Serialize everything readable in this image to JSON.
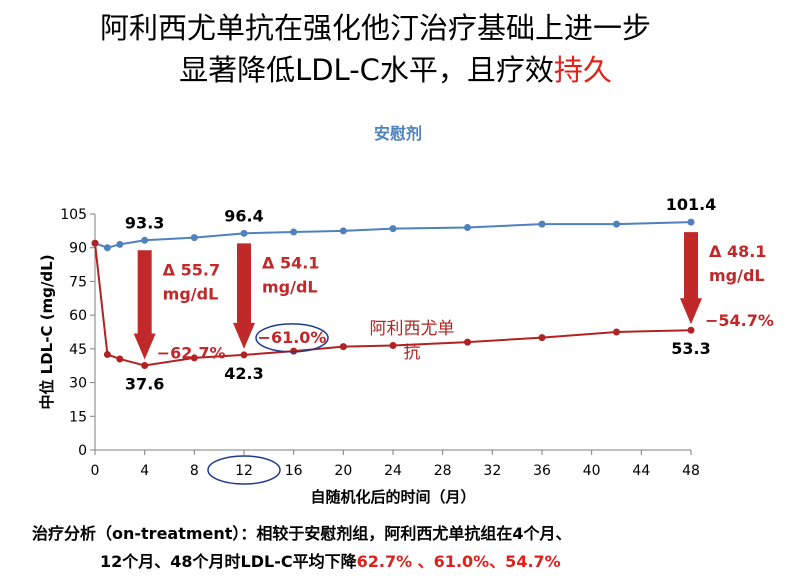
{
  "slide": {
    "title_line1": "阿利西尤单抗在强化他汀治疗基础上进一步",
    "title_line2_main": "显著降低LDL-C水平，且疗效",
    "title_line2_emph": "持久",
    "footer_line1": "治疗分析（on-treatment）：相较于安慰剂组，阿利西尤单抗组在4个月、",
    "footer_line2_main": "12个月、48个月时LDL-C平均下降",
    "footer_line2_emph": "62.7% 、61.0%、54.7%"
  },
  "colors": {
    "placebo": "#4f81bd",
    "alirocumab": "#b22222",
    "arrow": "#c0282a",
    "emphasis": "#e0201b",
    "highlight_ellipse": "#1f3b8c"
  },
  "chart_data": {
    "type": "line",
    "title": "",
    "xlabel": "自随机化后的时间（月）",
    "ylabel": "中位 LDL-C (mg/dL)",
    "xlim": [
      0,
      48
    ],
    "ylim": [
      0,
      105
    ],
    "xticks": [
      0,
      4,
      8,
      12,
      16,
      20,
      24,
      28,
      32,
      36,
      40,
      44,
      48
    ],
    "yticks": [
      0,
      15,
      30,
      45,
      60,
      75,
      90,
      105
    ],
    "grid": false,
    "highlight_xtick": 12,
    "series": [
      {
        "name": "安慰剂",
        "color": "#4f81bd",
        "x": [
          0,
          1,
          2,
          4,
          8,
          12,
          16,
          20,
          24,
          30,
          36,
          42,
          48
        ],
        "y": [
          92,
          90,
          91.5,
          93.3,
          94.5,
          96.4,
          97,
          97.5,
          98.5,
          99,
          100.5,
          100.5,
          101.4
        ]
      },
      {
        "name": "阿利西尤单抗",
        "color": "#b22222",
        "x": [
          0,
          1,
          2,
          4,
          8,
          12,
          16,
          20,
          24,
          30,
          36,
          42,
          48
        ],
        "y": [
          92,
          42.5,
          40.5,
          37.6,
          41,
          42.3,
          44,
          46,
          46.5,
          48,
          50,
          52.5,
          53.3
        ]
      }
    ],
    "point_labels": [
      {
        "x": 4,
        "y": 93.3,
        "text": "93.3",
        "pos": "above"
      },
      {
        "x": 12,
        "y": 96.4,
        "text": "96.4",
        "pos": "above"
      },
      {
        "x": 48,
        "y": 101.4,
        "text": "101.4",
        "pos": "above"
      },
      {
        "x": 4,
        "y": 37.6,
        "text": "37.6",
        "pos": "below"
      },
      {
        "x": 12,
        "y": 42.3,
        "text": "42.3",
        "pos": "below"
      },
      {
        "x": 48,
        "y": 53.3,
        "text": "53.3",
        "pos": "below"
      }
    ],
    "reductions": [
      {
        "x": 4,
        "delta": "Δ 55.7",
        "unit": "mg/dL",
        "pct": "−62.7%",
        "from": 93.3,
        "to": 37.6
      },
      {
        "x": 12,
        "delta": "Δ 54.1",
        "unit": "mg/dL",
        "pct": "−61.0%",
        "from": 96.4,
        "to": 42.3
      },
      {
        "x": 48,
        "delta": "Δ 48.1",
        "unit": "mg/dL",
        "pct": "−54.7%",
        "from": 101.4,
        "to": 53.3
      }
    ]
  }
}
